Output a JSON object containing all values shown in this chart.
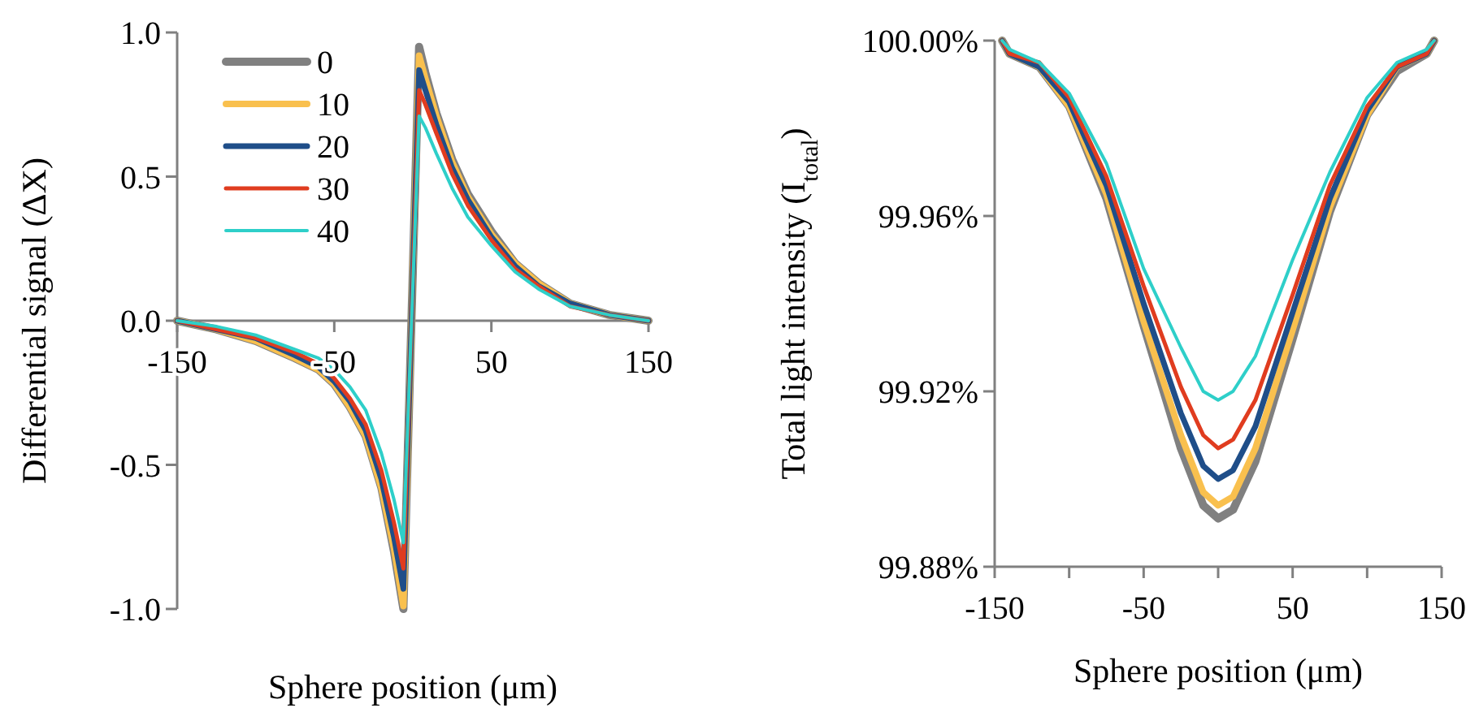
{
  "chart_data": [
    {
      "type": "line",
      "xlabel": "Sphere position (μm)",
      "ylabel": "Differential signal (ΔX)",
      "xlim": [
        -150,
        150
      ],
      "xticks": [
        -150,
        -50,
        50,
        150
      ],
      "ylim": [
        -1,
        1
      ],
      "yticks": [
        {
          "value": -1,
          "label": "-1.0"
        },
        {
          "value": -0.5,
          "label": "-0.5"
        },
        {
          "value": 0,
          "label": "0.0"
        },
        {
          "value": 0.5,
          "label": "0.5"
        },
        {
          "value": 1,
          "label": "1.0"
        }
      ],
      "legend": "top left",
      "grid": false,
      "marker": "none",
      "line_style": "solid",
      "x": [
        -150,
        -125,
        -100,
        -75,
        -60,
        -50,
        -40,
        -30,
        -20,
        -12,
        -6,
        4,
        8,
        15,
        25,
        35,
        50,
        65,
        80,
        100,
        125,
        150
      ],
      "series": [
        {
          "name": "0",
          "color": "#808080",
          "values": [
            0,
            -0.03,
            -0.07,
            -0.13,
            -0.17,
            -0.22,
            -0.3,
            -0.4,
            -0.58,
            -0.8,
            -1.0,
            0.95,
            0.86,
            0.72,
            0.56,
            0.44,
            0.31,
            0.2,
            0.13,
            0.06,
            0.02,
            0
          ]
        },
        {
          "name": "10",
          "color": "#f9c04e",
          "values": [
            0,
            -0.03,
            -0.07,
            -0.13,
            -0.17,
            -0.22,
            -0.3,
            -0.4,
            -0.58,
            -0.79,
            -0.99,
            0.92,
            0.84,
            0.71,
            0.55,
            0.43,
            0.3,
            0.2,
            0.13,
            0.06,
            0.02,
            0
          ]
        },
        {
          "name": "20",
          "color": "#1f4e89",
          "values": [
            0,
            -0.03,
            -0.06,
            -0.12,
            -0.16,
            -0.21,
            -0.28,
            -0.38,
            -0.55,
            -0.75,
            -0.93,
            0.87,
            0.8,
            0.68,
            0.53,
            0.42,
            0.29,
            0.19,
            0.12,
            0.06,
            0.02,
            0
          ]
        },
        {
          "name": "30",
          "color": "#e03c1f",
          "values": [
            0,
            -0.03,
            -0.06,
            -0.11,
            -0.15,
            -0.2,
            -0.27,
            -0.36,
            -0.52,
            -0.7,
            -0.86,
            0.8,
            0.75,
            0.65,
            0.51,
            0.4,
            0.28,
            0.18,
            0.12,
            0.05,
            0.02,
            0
          ]
        },
        {
          "name": "40",
          "color": "#2ecfc9",
          "values": [
            0,
            -0.02,
            -0.05,
            -0.1,
            -0.13,
            -0.17,
            -0.23,
            -0.31,
            -0.46,
            -0.62,
            -0.77,
            0.71,
            0.67,
            0.58,
            0.46,
            0.36,
            0.26,
            0.17,
            0.11,
            0.05,
            0.02,
            0
          ]
        }
      ]
    },
    {
      "type": "line",
      "xlabel": "Sphere position (μm)",
      "ylabel": "Total light intensity (I$_{total}$)",
      "xlim": [
        -150,
        150
      ],
      "xticks": [
        -150,
        {
          "value": -100,
          "label": null
        },
        -50,
        {
          "value": 0,
          "label": null
        },
        50,
        {
          "value": 100,
          "label": null
        },
        150
      ],
      "ylim": [
        99.88,
        100
      ],
      "yticks": [
        {
          "value": 99.88,
          "label": "99.88%"
        },
        {
          "value": 99.92,
          "label": "99.92%"
        },
        {
          "value": 99.96,
          "label": "99.96%"
        },
        {
          "value": 100,
          "label": "100.00%"
        }
      ],
      "legend": false,
      "grid": false,
      "marker": "none",
      "line_style": "solid",
      "x": [
        -145,
        -140,
        -120,
        -100,
        -75,
        -50,
        -25,
        -10,
        0,
        10,
        25,
        50,
        75,
        100,
        120,
        140,
        145
      ],
      "series": [
        {
          "color": "#808080",
          "values": [
            100,
            99.997,
            99.994,
            99.985,
            99.964,
            99.935,
            99.907,
            99.894,
            99.891,
            99.893,
            99.904,
            99.932,
            99.961,
            99.983,
            99.993,
            99.997,
            100
          ]
        },
        {
          "color": "#f9c04e",
          "values": [
            100,
            99.997,
            99.994,
            99.985,
            99.965,
            99.936,
            99.91,
            99.897,
            99.894,
            99.896,
            99.907,
            99.934,
            99.962,
            99.983,
            99.994,
            99.997,
            100
          ]
        },
        {
          "color": "#1f4e89",
          "values": [
            100,
            99.997,
            99.994,
            99.986,
            99.967,
            99.94,
            99.915,
            99.903,
            99.9,
            99.902,
            99.912,
            99.938,
            99.964,
            99.984,
            99.994,
            99.997,
            100
          ]
        },
        {
          "color": "#e03c1f",
          "values": [
            100,
            99.997,
            99.995,
            99.987,
            99.969,
            99.944,
            99.921,
            99.91,
            99.907,
            99.909,
            99.918,
            99.942,
            99.967,
            99.985,
            99.994,
            99.997,
            100
          ]
        },
        {
          "color": "#2ecfc9",
          "values": [
            100,
            99.998,
            99.995,
            99.988,
            99.972,
            99.948,
            99.93,
            99.92,
            99.918,
            99.92,
            99.928,
            99.95,
            99.97,
            99.987,
            99.995,
            99.998,
            100
          ]
        }
      ]
    }
  ]
}
